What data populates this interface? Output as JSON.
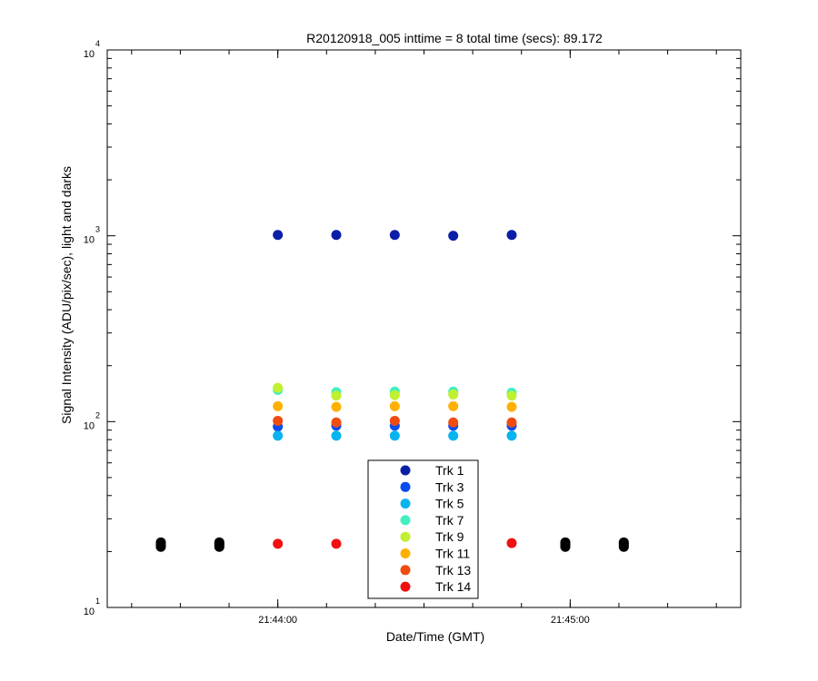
{
  "chart_data": {
    "type": "scatter",
    "title": "R20120918_005 inttime = 8 total time (secs): 89.172",
    "xlabel": "Date/Time (GMT)",
    "ylabel": "Signal Intensity (ADU/pix/sec), light and darks",
    "y_scale": "log",
    "ylim": [
      10,
      10000
    ],
    "xlim_seconds_after_2144": [
      -35,
      95
    ],
    "x_ticks": [
      {
        "value": 0,
        "label": "21:44:00"
      },
      {
        "value": 60,
        "label": "21:45:00"
      }
    ],
    "y_ticks": [
      {
        "value": 10,
        "base": "10",
        "exp": "1"
      },
      {
        "value": 100,
        "base": "10",
        "exp": "2"
      },
      {
        "value": 1000,
        "base": "10",
        "exp": "3"
      },
      {
        "value": 10000,
        "base": "10",
        "exp": "4"
      }
    ],
    "grid": false,
    "legend_position": "bottom-center",
    "series": [
      {
        "name": "Trk 1",
        "color": "#0a1fa8",
        "x": [
          0,
          12,
          24,
          36,
          48
        ],
        "y": [
          1010,
          1010,
          1010,
          1000,
          1010
        ]
      },
      {
        "name": "Trk 3",
        "color": "#0a4cf0",
        "x": [
          0,
          12,
          24,
          36,
          48
        ],
        "y": [
          94,
          95,
          95,
          95,
          95
        ]
      },
      {
        "name": "Trk 5",
        "color": "#07b4f0",
        "x": [
          0,
          12,
          24,
          36,
          48
        ],
        "y": [
          84,
          84,
          84,
          84,
          84
        ]
      },
      {
        "name": "Trk 7",
        "color": "#40f0c0",
        "x": [
          0,
          12,
          24,
          36,
          48
        ],
        "y": [
          148,
          144,
          145,
          145,
          143
        ]
      },
      {
        "name": "Trk 9",
        "color": "#c0f030",
        "x": [
          0,
          12,
          24,
          36,
          48
        ],
        "y": [
          152,
          138,
          139,
          140,
          138
        ]
      },
      {
        "name": "Trk 11",
        "color": "#ffb000",
        "x": [
          0,
          12,
          24,
          36,
          48
        ],
        "y": [
          121,
          120,
          121,
          121,
          120
        ]
      },
      {
        "name": "Trk 13",
        "color": "#f04c10",
        "x": [
          0,
          12,
          24,
          36,
          48
        ],
        "y": [
          101,
          99,
          101,
          99,
          99
        ]
      },
      {
        "name": "Trk 14",
        "color": "#f01010",
        "x": [
          0,
          12,
          48
        ],
        "y": [
          22,
          22,
          22.2
        ]
      },
      {
        "name": "",
        "color": "#000000",
        "x": [
          -24,
          -24,
          -24,
          -24,
          -12,
          -12,
          -12,
          -12,
          59,
          59,
          59,
          59,
          71,
          71,
          71,
          71
        ],
        "y": [
          21.2,
          21.6,
          22.0,
          22.4,
          21.2,
          21.6,
          22.0,
          22.4,
          21.2,
          21.6,
          22.0,
          22.4,
          21.2,
          21.6,
          22.0,
          22.4
        ]
      }
    ]
  }
}
